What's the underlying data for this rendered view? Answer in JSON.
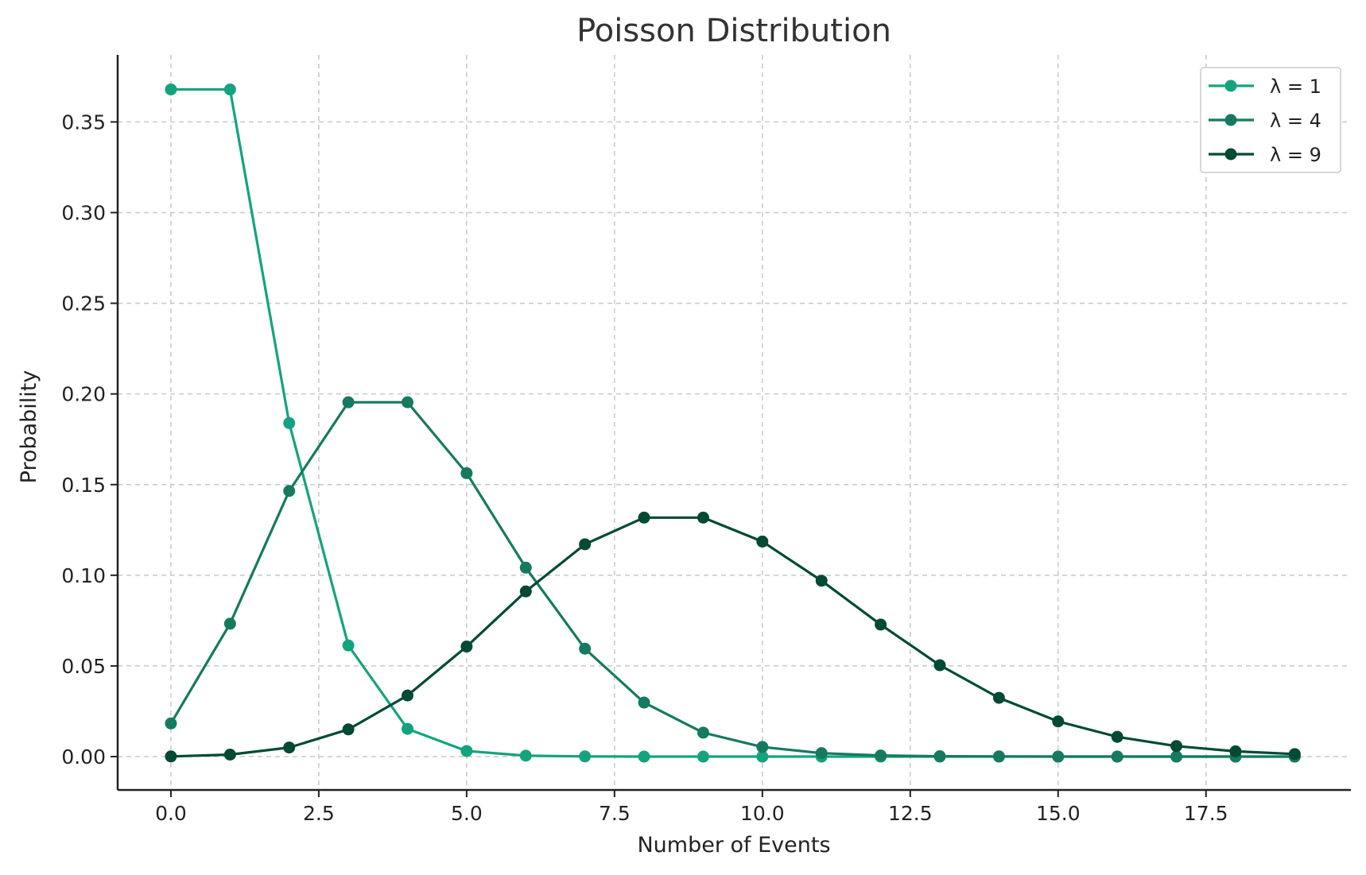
{
  "chart_data": {
    "type": "line",
    "title": "Poisson Distribution",
    "xlabel": "Number of Events",
    "ylabel": "Probability",
    "xlim": [
      -0.9,
      19.95
    ],
    "ylim": [
      -0.0184,
      0.387
    ],
    "xticks": [
      0.0,
      2.5,
      5.0,
      7.5,
      10.0,
      12.5,
      15.0,
      17.5
    ],
    "xtick_labels": [
      "0.0",
      "2.5",
      "5.0",
      "7.5",
      "10.0",
      "12.5",
      "15.0",
      "17.5"
    ],
    "yticks": [
      0.0,
      0.05,
      0.1,
      0.15,
      0.2,
      0.25,
      0.3,
      0.35
    ],
    "ytick_labels": [
      "0.00",
      "0.05",
      "0.10",
      "0.15",
      "0.20",
      "0.25",
      "0.30",
      "0.35"
    ],
    "grid": true,
    "legend_position": "top-right",
    "x": [
      0,
      1,
      2,
      3,
      4,
      5,
      6,
      7,
      8,
      9,
      10,
      11,
      12,
      13,
      14,
      15,
      16,
      17,
      18,
      19
    ],
    "series": [
      {
        "name": "λ = 1",
        "color": "#14a37f",
        "values": [
          0.3679,
          0.3679,
          0.1839,
          0.0613,
          0.0153,
          0.0031,
          0.0005,
          0.0001,
          0,
          0,
          0,
          0,
          0,
          0,
          0,
          0,
          0,
          0,
          0,
          0
        ]
      },
      {
        "name": "λ = 4",
        "color": "#167a60",
        "values": [
          0.0183,
          0.0733,
          0.1465,
          0.1954,
          0.1954,
          0.1563,
          0.1042,
          0.0595,
          0.0298,
          0.0132,
          0.0053,
          0.0019,
          0.0006,
          0.0002,
          0.0001,
          0,
          0,
          0,
          0,
          0
        ]
      },
      {
        "name": "λ = 9",
        "color": "#034a35",
        "values": [
          0.0001,
          0.0011,
          0.005,
          0.015,
          0.0337,
          0.0607,
          0.0911,
          0.1171,
          0.1318,
          0.1318,
          0.1186,
          0.097,
          0.0728,
          0.0504,
          0.0324,
          0.0194,
          0.0109,
          0.0058,
          0.0029,
          0.0014
        ]
      }
    ]
  }
}
